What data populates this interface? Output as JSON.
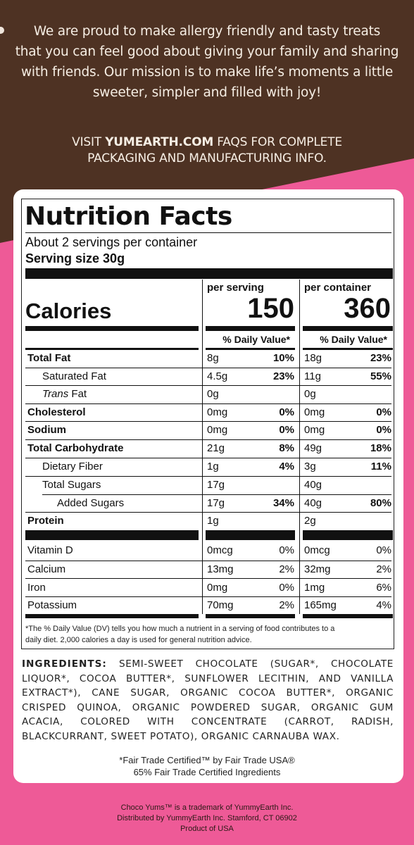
{
  "mission": {
    "lines": [
      "We are proud to make allergy friendly and tasty treats",
      "that you can feel good about giving your family and sharing",
      "with friends. Our mission is to make life’s moments a little",
      "sweeter, simpler and filled with joy!"
    ]
  },
  "visit": {
    "prefix": "VISIT ",
    "site": "YUMEARTH.COM",
    "suffix": " FAQS FOR COMPLETE",
    "line2": "PACKAGING AND MANUFACTURING INFO."
  },
  "nutrition": {
    "title": "Nutrition Facts",
    "servings": "About 2 servings per container",
    "serving_size": "Serving size 30g",
    "col1_head": "per serving",
    "col2_head": "per container",
    "calories_label": "Calories",
    "calories_serving": "150",
    "calories_container": "360",
    "dv_head": "% Daily Value*",
    "rows": [
      {
        "name": "Total Fat",
        "a1": "8g",
        "p1": "10%",
        "a2": "18g",
        "p2": "23%"
      },
      {
        "name": "Saturated Fat",
        "a1": "4.5g",
        "p1": "23%",
        "a2": "11g",
        "p2": "55%"
      },
      {
        "name": "Trans",
        "name2": " Fat",
        "a1": "0g",
        "p1": "",
        "a2": "0g",
        "p2": ""
      },
      {
        "name": "Cholesterol",
        "a1": "0mg",
        "p1": "0%",
        "a2": "0mg",
        "p2": "0%"
      },
      {
        "name": "Sodium",
        "a1": "0mg",
        "p1": "0%",
        "a2": "0mg",
        "p2": "0%"
      },
      {
        "name": "Total Carbohydrate",
        "a1": "21g",
        "p1": "8%",
        "a2": "49g",
        "p2": "18%"
      },
      {
        "name": "Dietary Fiber",
        "a1": "1g",
        "p1": "4%",
        "a2": "3g",
        "p2": "11%"
      },
      {
        "name": "Total Sugars",
        "a1": "17g",
        "p1": "",
        "a2": "40g",
        "p2": ""
      },
      {
        "name": "Added Sugars",
        "a1": "17g",
        "p1": "34%",
        "a2": "40g",
        "p2": "80%"
      },
      {
        "name": "Protein",
        "a1": "1g",
        "p1": "",
        "a2": "2g",
        "p2": ""
      }
    ],
    "vitamins": [
      {
        "name": "Vitamin D",
        "a1": "0mcg",
        "p1": "0%",
        "a2": "0mcg",
        "p2": "0%"
      },
      {
        "name": "Calcium",
        "a1": "13mg",
        "p1": "2%",
        "a2": "32mg",
        "p2": "2%"
      },
      {
        "name": "Iron",
        "a1": "0mg",
        "p1": "0%",
        "a2": "1mg",
        "p2": "6%"
      },
      {
        "name": "Potassium",
        "a1": "70mg",
        "p1": "2%",
        "a2": "165mg",
        "p2": "4%"
      }
    ],
    "footnote_1": "*The % Daily Value (DV) tells you how much a nutrient in a serving of food contributes to a",
    "footnote_2": "daily diet. 2,000 calories a day is used for general nutrition advice."
  },
  "ingredients": {
    "label": "INGREDIENTS:",
    "text": " SEMI-SWEET CHOCOLATE (SUGAR*, CHOCOLATE LIQUOR*, COCOA BUTTER*, SUNFLOWER LECITHIN, AND VANILLA EXTRACT*), CANE SUGAR, ORGANIC COCOA BUTTER*, ORGANIC CRISPED QUINOA, ORGANIC POWDERED SUGAR, ORGANIC GUM ACACIA, COLORED WITH CONCENTRATE (CARROT, RADISH, BLACKCURRANT, SWEET POTATO), ORGANIC CARNAUBA WAX."
  },
  "fairtrade": {
    "line1": "*Fair Trade Certified™ by Fair Trade USA®",
    "line2": "65% Fair Trade Certified Ingredients"
  },
  "footer": {
    "line1": "Choco Yums™ is a trademark of YummyEarth Inc.",
    "line2": "Distributed by YummyEarth Inc. Stamford, CT 06902",
    "line3": "Product of USA"
  },
  "colors": {
    "brown": "#4e3223",
    "pink": "#ee5a97"
  }
}
